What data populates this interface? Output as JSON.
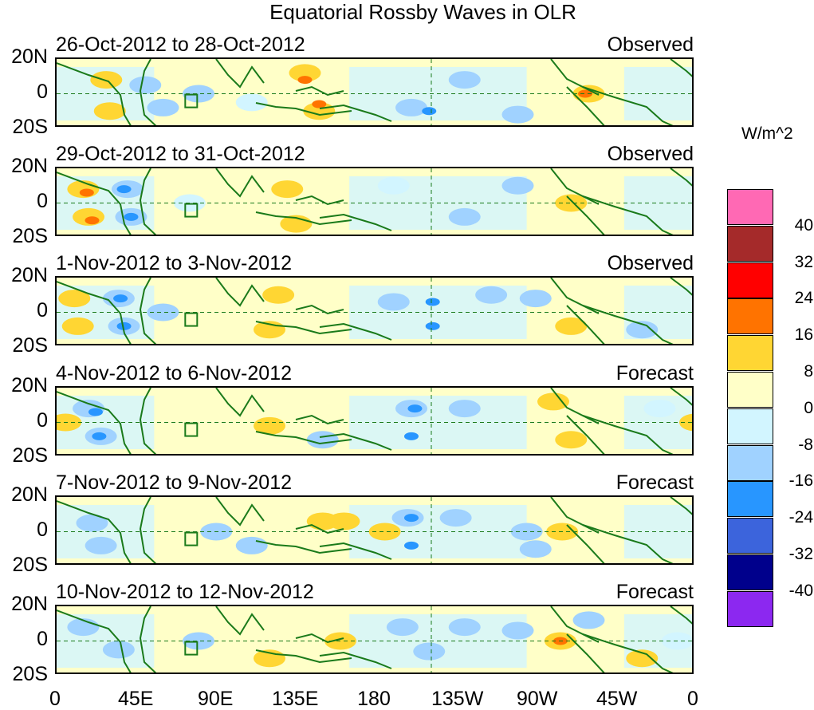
{
  "title": "Equatorial Rossby Waves in OLR",
  "chart_data": {
    "type": "heatmap",
    "title": "Equatorial Rossby Waves in OLR",
    "y_tick_labels": [
      "20N",
      "0",
      "20S"
    ],
    "x_tick_labels": [
      "0",
      "45E",
      "90E",
      "135E",
      "180",
      "135W",
      "90W",
      "45W",
      "0"
    ],
    "colorbar": {
      "units": "W/m^2",
      "levels": [
        40,
        32,
        24,
        16,
        8,
        0,
        -8,
        -16,
        -24,
        -32,
        -40
      ],
      "colors": [
        "#ff69b4",
        "#a52a2a",
        "#ff0000",
        "#ff7300",
        "#ffd633",
        "#ffffc8",
        "#d2f5ff",
        "#a0d2ff",
        "#2896ff",
        "#3c64dc",
        "#00008c",
        "#8c28f0"
      ]
    },
    "panels": [
      {
        "period": "26-Oct-2012 to 28-Oct-2012",
        "status": "Observed"
      },
      {
        "period": "29-Oct-2012 to 31-Oct-2012",
        "status": "Observed"
      },
      {
        "period": "1-Nov-2012 to 3-Nov-2012",
        "status": "Observed"
      },
      {
        "period": "4-Nov-2012 to 6-Nov-2012",
        "status": "Forecast"
      },
      {
        "period": "7-Nov-2012 to 9-Nov-2012",
        "status": "Forecast"
      },
      {
        "period": "10-Nov-2012 to 12-Nov-2012",
        "status": "Forecast"
      }
    ],
    "xlim": [
      0,
      360
    ],
    "ylim": [
      -20,
      20
    ]
  }
}
